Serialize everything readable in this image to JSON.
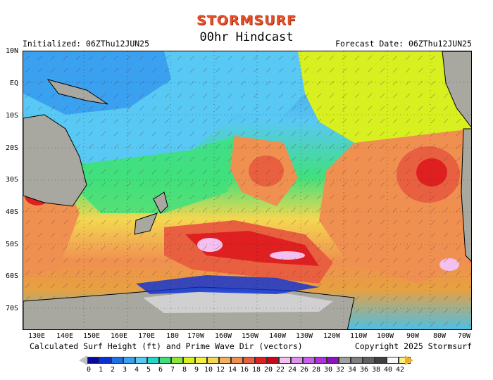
{
  "header": {
    "logo": "STORMSURF",
    "title": "00hr Hindcast",
    "initialized": "Initialized: 06ZThu12JUN25",
    "forecast_date": "Forecast Date: 06ZThu12JUN25"
  },
  "axes": {
    "lat_labels": [
      "10N",
      "EQ",
      "10S",
      "20S",
      "30S",
      "40S",
      "50S",
      "60S",
      "70S"
    ],
    "lon_labels": [
      "130E",
      "140E",
      "150E",
      "160E",
      "170E",
      "180",
      "170W",
      "160W",
      "150W",
      "140W",
      "130W",
      "120W",
      "110W",
      "100W",
      "90W",
      "80W",
      "70W"
    ]
  },
  "footer": {
    "caption": "Calculated Surf Height (ft) and Prime Wave Dir (vectors)",
    "copyright": "Copyright 2025 Stormsurf"
  },
  "colorbar": {
    "labels": [
      "0",
      "1",
      "2",
      "3",
      "4",
      "5",
      "6",
      "7",
      "8",
      "9",
      "10",
      "12",
      "14",
      "16",
      "18",
      "20",
      "22",
      "24",
      "26",
      "28",
      "30",
      "32",
      "34",
      "36",
      "38",
      "40",
      "42"
    ],
    "colors": [
      "#08089a",
      "#0a2fd6",
      "#1e6fe8",
      "#3aa0f0",
      "#58c8f4",
      "#20d8c8",
      "#3fe07c",
      "#8ae83a",
      "#d8f020",
      "#f4f040",
      "#f4d850",
      "#f4b060",
      "#f09050",
      "#e86040",
      "#e02020",
      "#c80818",
      "#f4c0f0",
      "#e090f0",
      "#c860e8",
      "#b030e0",
      "#9010c0",
      "#a0a0a0",
      "#808080",
      "#606060",
      "#404040",
      "#f8f8f8",
      "#f8f080"
    ]
  },
  "colors": {
    "land": "#a8a8a0",
    "ice": "#c8c8c8"
  }
}
